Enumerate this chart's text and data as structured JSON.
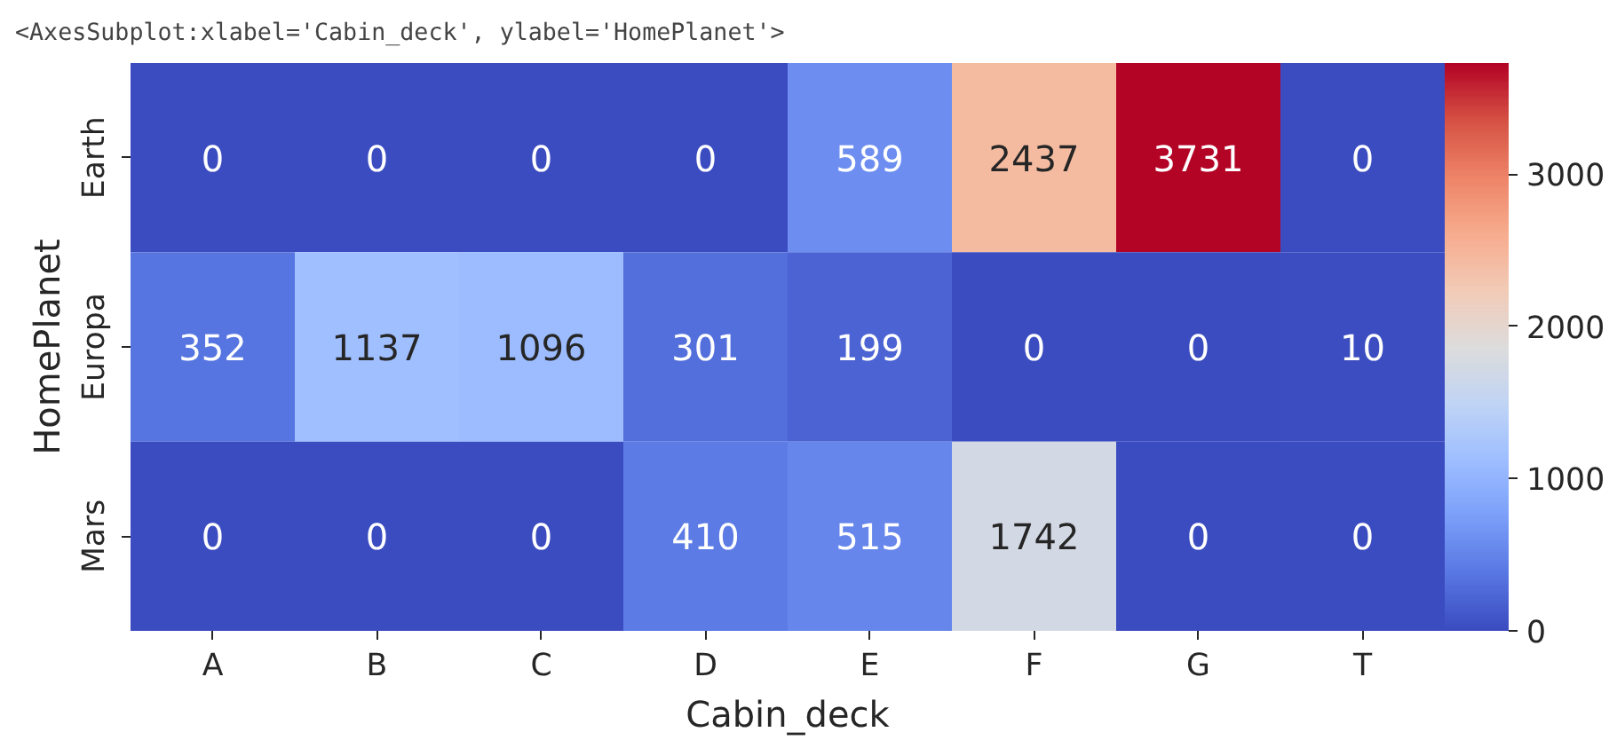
{
  "chart_data": {
    "type": "heatmap",
    "annotations": [
      "<AxesSubplot:xlabel='Cabin_deck', ylabel='HomePlanet'>"
    ],
    "xlabel": "Cabin_deck",
    "ylabel": "HomePlanet",
    "categories": [
      "A",
      "B",
      "C",
      "D",
      "E",
      "F",
      "G",
      "T"
    ],
    "y_categories": [
      "Earth",
      "Europa",
      "Mars"
    ],
    "cells": [
      [
        0,
        0,
        0,
        0,
        589,
        2437,
        3731,
        0
      ],
      [
        352,
        1137,
        1096,
        301,
        199,
        0,
        0,
        10
      ],
      [
        0,
        0,
        0,
        410,
        515,
        1742,
        0,
        0
      ]
    ],
    "data_labels": true,
    "clim": [
      0,
      3731
    ],
    "cticks": [
      0,
      1000,
      2000,
      3000
    ]
  }
}
